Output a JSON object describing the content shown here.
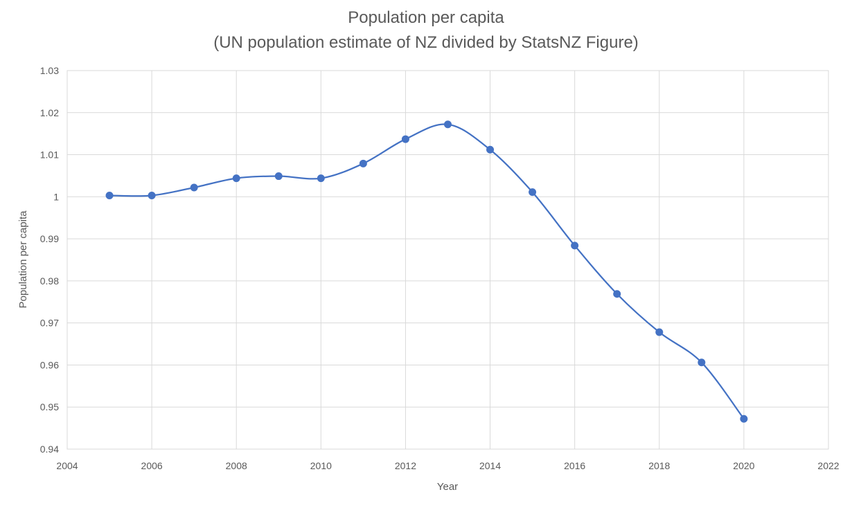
{
  "chart_data": {
    "type": "scatter",
    "title": "Population per capita",
    "subtitle": "(UN population estimate of NZ divided by StatsNZ Figure)",
    "xlabel": "Year",
    "ylabel": "Population per capita",
    "xlim": [
      2004,
      2022
    ],
    "ylim": [
      0.94,
      1.03
    ],
    "x_ticks": [
      "2004",
      "2006",
      "2008",
      "2010",
      "2012",
      "2014",
      "2016",
      "2018",
      "2020",
      "2022"
    ],
    "y_ticks": [
      "0.94",
      "0.95",
      "0.96",
      "0.97",
      "0.98",
      "0.99",
      "1",
      "1.01",
      "1.02",
      "1.03"
    ],
    "grid": true,
    "smooth_line": true,
    "series": [
      {
        "color": "#4472c4",
        "x": [
          2005,
          2006,
          2007,
          2008,
          2009,
          2010,
          2011,
          2012,
          2013,
          2014,
          2015,
          2016,
          2017,
          2018,
          2019,
          2020
        ],
        "y": [
          1.0003,
          1.0003,
          1.0022,
          1.0044,
          1.0049,
          1.0044,
          1.0079,
          1.0137,
          1.0172,
          1.0112,
          1.0011,
          0.9884,
          0.9769,
          0.9678,
          0.9606,
          0.9472
        ]
      }
    ]
  }
}
